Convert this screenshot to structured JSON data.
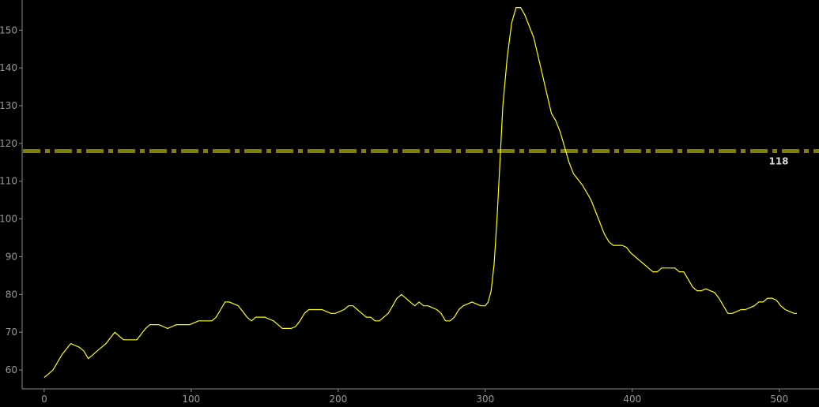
{
  "chart_data": {
    "type": "line",
    "title": "",
    "xlabel": "",
    "ylabel": "",
    "xlim": [
      -15,
      527
    ],
    "ylim": [
      55,
      158
    ],
    "x_ticks": [
      "0",
      "100",
      "200",
      "300",
      "400",
      "500"
    ],
    "y_ticks": [
      "60",
      "70",
      "80",
      "90",
      "100",
      "110",
      "120",
      "130",
      "140",
      "150"
    ],
    "grid": false,
    "colors": {
      "background": "#000000",
      "axis": "#8a8a8a",
      "line": "#ffff00",
      "reference_line": "#7f7f00"
    },
    "series": [
      {
        "points": [
          [
            0,
            58
          ],
          [
            3,
            59
          ],
          [
            6,
            60
          ],
          [
            9,
            62
          ],
          [
            12,
            64
          ],
          [
            15,
            65.5
          ],
          [
            18,
            67
          ],
          [
            21,
            66.5
          ],
          [
            24,
            66
          ],
          [
            27,
            65
          ],
          [
            30,
            63
          ],
          [
            33,
            64
          ],
          [
            36,
            65
          ],
          [
            39,
            66
          ],
          [
            42,
            67
          ],
          [
            45,
            68.5
          ],
          [
            48,
            70
          ],
          [
            51,
            69
          ],
          [
            54,
            68
          ],
          [
            57,
            68
          ],
          [
            60,
            68
          ],
          [
            63,
            68
          ],
          [
            66,
            69.5
          ],
          [
            69,
            71
          ],
          [
            72,
            72
          ],
          [
            75,
            72
          ],
          [
            78,
            72
          ],
          [
            81,
            71.5
          ],
          [
            84,
            71
          ],
          [
            87,
            71.5
          ],
          [
            90,
            72
          ],
          [
            93,
            72
          ],
          [
            96,
            72
          ],
          [
            99,
            72
          ],
          [
            102,
            72.5
          ],
          [
            105,
            73
          ],
          [
            108,
            73
          ],
          [
            111,
            73
          ],
          [
            114,
            73
          ],
          [
            117,
            74
          ],
          [
            120,
            76
          ],
          [
            123,
            78
          ],
          [
            126,
            78
          ],
          [
            129,
            77.5
          ],
          [
            132,
            77
          ],
          [
            135,
            75.5
          ],
          [
            138,
            74
          ],
          [
            141,
            73
          ],
          [
            144,
            74
          ],
          [
            147,
            74
          ],
          [
            150,
            74
          ],
          [
            153,
            73.5
          ],
          [
            156,
            73
          ],
          [
            159,
            72
          ],
          [
            162,
            71
          ],
          [
            165,
            71
          ],
          [
            168,
            71
          ],
          [
            171,
            71.5
          ],
          [
            174,
            73
          ],
          [
            177,
            75
          ],
          [
            180,
            76
          ],
          [
            183,
            76
          ],
          [
            186,
            76
          ],
          [
            189,
            76
          ],
          [
            192,
            75.5
          ],
          [
            195,
            75
          ],
          [
            198,
            75
          ],
          [
            201,
            75.5
          ],
          [
            204,
            76
          ],
          [
            207,
            77
          ],
          [
            210,
            77
          ],
          [
            213,
            76
          ],
          [
            216,
            75
          ],
          [
            219,
            74
          ],
          [
            222,
            74
          ],
          [
            225,
            73
          ],
          [
            228,
            73
          ],
          [
            231,
            74
          ],
          [
            234,
            75
          ],
          [
            237,
            77
          ],
          [
            240,
            79
          ],
          [
            243,
            80
          ],
          [
            246,
            79
          ],
          [
            249,
            78
          ],
          [
            252,
            77
          ],
          [
            255,
            78
          ],
          [
            258,
            77
          ],
          [
            261,
            77
          ],
          [
            264,
            76.5
          ],
          [
            267,
            76
          ],
          [
            270,
            75
          ],
          [
            273,
            73
          ],
          [
            276,
            73
          ],
          [
            279,
            74
          ],
          [
            282,
            76
          ],
          [
            285,
            77
          ],
          [
            288,
            77.5
          ],
          [
            291,
            78
          ],
          [
            294,
            77.5
          ],
          [
            297,
            77
          ],
          [
            300,
            77
          ],
          [
            302,
            78
          ],
          [
            304,
            81
          ],
          [
            306,
            88
          ],
          [
            308,
            100
          ],
          [
            310,
            115
          ],
          [
            312,
            130
          ],
          [
            315,
            143
          ],
          [
            318,
            152
          ],
          [
            321,
            156
          ],
          [
            324,
            156
          ],
          [
            327,
            154
          ],
          [
            330,
            151
          ],
          [
            333,
            148
          ],
          [
            336,
            143
          ],
          [
            339,
            138
          ],
          [
            342,
            133
          ],
          [
            345,
            128
          ],
          [
            348,
            126
          ],
          [
            351,
            123
          ],
          [
            354,
            119
          ],
          [
            357,
            115
          ],
          [
            360,
            112
          ],
          [
            363,
            110.5
          ],
          [
            366,
            109
          ],
          [
            369,
            107
          ],
          [
            372,
            105
          ],
          [
            375,
            102
          ],
          [
            378,
            99
          ],
          [
            381,
            96
          ],
          [
            384,
            94
          ],
          [
            387,
            93
          ],
          [
            390,
            93
          ],
          [
            393,
            93
          ],
          [
            396,
            92.5
          ],
          [
            399,
            91
          ],
          [
            402,
            90
          ],
          [
            405,
            89
          ],
          [
            408,
            88
          ],
          [
            411,
            87
          ],
          [
            414,
            86
          ],
          [
            417,
            86
          ],
          [
            420,
            87
          ],
          [
            423,
            87
          ],
          [
            426,
            87
          ],
          [
            429,
            87
          ],
          [
            432,
            86
          ],
          [
            435,
            86
          ],
          [
            438,
            84
          ],
          [
            441,
            82
          ],
          [
            444,
            81
          ],
          [
            447,
            81
          ],
          [
            450,
            81.5
          ],
          [
            453,
            81
          ],
          [
            456,
            80.5
          ],
          [
            459,
            79
          ],
          [
            462,
            77
          ],
          [
            465,
            75
          ],
          [
            468,
            75
          ],
          [
            471,
            75.5
          ],
          [
            474,
            76
          ],
          [
            477,
            76
          ],
          [
            480,
            76.5
          ],
          [
            483,
            77
          ],
          [
            486,
            78
          ],
          [
            489,
            78
          ],
          [
            492,
            79
          ],
          [
            495,
            79
          ],
          [
            498,
            78.5
          ],
          [
            501,
            77
          ],
          [
            504,
            76
          ],
          [
            507,
            75.5
          ],
          [
            510,
            75
          ],
          [
            512,
            75
          ]
        ]
      }
    ],
    "reference_lines": [
      {
        "y": 118,
        "label": "118",
        "style": "dash-dot"
      }
    ]
  }
}
